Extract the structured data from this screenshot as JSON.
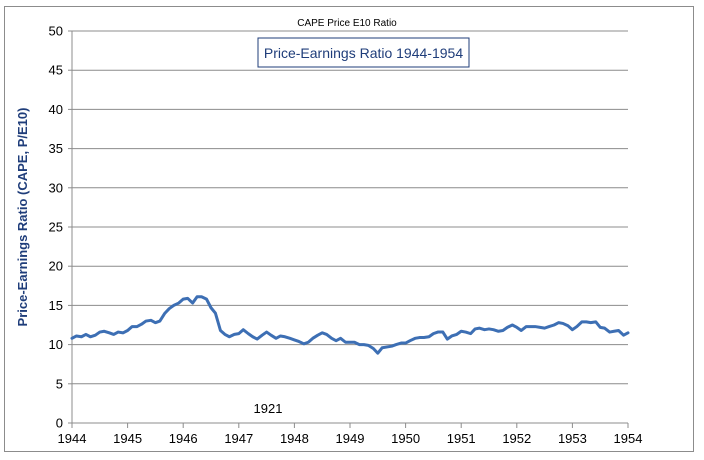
{
  "chart_data": {
    "type": "line",
    "title": "CAPE Price E10 Ratio",
    "subtitle": "Price-Earnings Ratio 1944-1954",
    "xlabel": "",
    "ylabel": "Price-Earnings Ratio (CAPE, P/E10)",
    "annotation": "1921",
    "xlim": [
      1944,
      1954
    ],
    "ylim": [
      0,
      50
    ],
    "x_ticks": [
      1944,
      1945,
      1946,
      1947,
      1948,
      1949,
      1950,
      1951,
      1952,
      1953,
      1954
    ],
    "y_ticks": [
      0,
      5,
      10,
      15,
      20,
      25,
      30,
      35,
      40,
      45,
      50
    ],
    "grid": true,
    "legend": "none",
    "line_color": "#3d6fb4",
    "series": [
      {
        "x": [
          1944.0,
          1944.08,
          1944.17,
          1944.25,
          1944.33,
          1944.42,
          1944.5,
          1944.58,
          1944.67,
          1944.75,
          1944.83,
          1944.92,
          1945.0,
          1945.08,
          1945.17,
          1945.25,
          1945.33,
          1945.42,
          1945.5,
          1945.58,
          1945.67,
          1945.75,
          1945.83,
          1945.92,
          1946.0,
          1946.08,
          1946.17,
          1946.25,
          1946.33,
          1946.42,
          1946.5,
          1946.58,
          1946.67,
          1946.75,
          1946.83,
          1946.92,
          1947.0,
          1947.08,
          1947.17,
          1947.25,
          1947.33,
          1947.42,
          1947.5,
          1947.58,
          1947.67,
          1947.75,
          1947.83,
          1947.92,
          1948.0,
          1948.08,
          1948.17,
          1948.25,
          1948.33,
          1948.42,
          1948.5,
          1948.58,
          1948.67,
          1948.75,
          1948.83,
          1948.92,
          1949.0,
          1949.08,
          1949.17,
          1949.25,
          1949.33,
          1949.42,
          1949.5,
          1949.58,
          1949.67,
          1949.75,
          1949.83,
          1949.92,
          1950.0,
          1950.08,
          1950.17,
          1950.25,
          1950.33,
          1950.42,
          1950.5,
          1950.58,
          1950.67,
          1950.75,
          1950.83,
          1950.92,
          1951.0,
          1951.08,
          1951.17,
          1951.25,
          1951.33,
          1951.42,
          1951.5,
          1951.58,
          1951.67,
          1951.75,
          1951.83,
          1951.92,
          1952.0,
          1952.08,
          1952.17,
          1952.25,
          1952.33,
          1952.42,
          1952.5,
          1952.58,
          1952.67,
          1952.75,
          1952.83,
          1952.92,
          1953.0,
          1953.08,
          1953.17,
          1953.25,
          1953.33,
          1953.42,
          1953.5,
          1953.58,
          1953.67,
          1953.75,
          1953.83,
          1953.92,
          1954.0
        ],
        "y": [
          10.8,
          11.1,
          11.0,
          11.3,
          11.0,
          11.2,
          11.6,
          11.7,
          11.5,
          11.3,
          11.6,
          11.5,
          11.8,
          12.3,
          12.3,
          12.6,
          13.0,
          13.1,
          12.8,
          13.0,
          14.0,
          14.6,
          15.0,
          15.3,
          15.8,
          15.9,
          15.3,
          16.1,
          16.1,
          15.8,
          14.7,
          14.0,
          11.8,
          11.3,
          11.0,
          11.3,
          11.4,
          11.9,
          11.4,
          11.0,
          10.7,
          11.2,
          11.6,
          11.2,
          10.8,
          11.1,
          11.0,
          10.8,
          10.6,
          10.4,
          10.1,
          10.3,
          10.8,
          11.2,
          11.5,
          11.3,
          10.8,
          10.5,
          10.8,
          10.3,
          10.3,
          10.3,
          10.0,
          10.0,
          9.9,
          9.5,
          8.9,
          9.6,
          9.7,
          9.8,
          10.0,
          10.2,
          10.2,
          10.5,
          10.8,
          10.9,
          10.9,
          11.0,
          11.4,
          11.6,
          11.6,
          10.7,
          11.1,
          11.3,
          11.7,
          11.6,
          11.4,
          12.0,
          12.1,
          11.9,
          12.0,
          11.9,
          11.7,
          11.8,
          12.2,
          12.5,
          12.2,
          11.8,
          12.3,
          12.3,
          12.3,
          12.2,
          12.1,
          12.3,
          12.5,
          12.8,
          12.7,
          12.4,
          11.9,
          12.3,
          12.9,
          12.9,
          12.8,
          12.9,
          12.2,
          12.1,
          11.6,
          11.7,
          11.8,
          11.2,
          11.5
        ]
      }
    ]
  }
}
